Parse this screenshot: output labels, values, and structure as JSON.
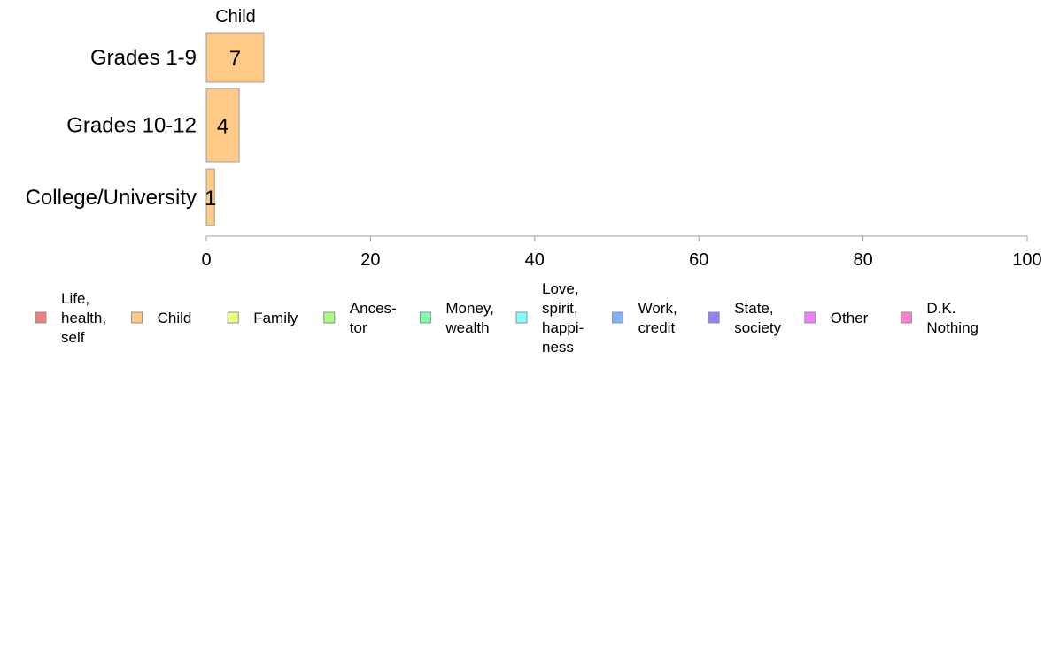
{
  "chart_data": {
    "type": "bar",
    "orientation": "horizontal",
    "categories": [
      "Grades 1-9",
      "Grades 10-12",
      "College/University"
    ],
    "series": [
      {
        "name": "Child",
        "values": [
          7,
          4,
          1
        ],
        "color": "#ffc987"
      }
    ],
    "data_labels": [
      "7",
      "4",
      "1"
    ],
    "column_header": "Child",
    "xlim": [
      0,
      100
    ],
    "xticks": [
      0,
      20,
      40,
      60,
      80,
      100
    ],
    "grid": false,
    "legend_position": "bottom",
    "legend": [
      {
        "label": "Life, health, self",
        "lines": [
          "Life,",
          "health,",
          "self"
        ],
        "color": "#f08080"
      },
      {
        "label": "Child",
        "lines": [
          "Child"
        ],
        "color": "#ffc987"
      },
      {
        "label": "Family",
        "lines": [
          "Family"
        ],
        "color": "#eeff80"
      },
      {
        "label": "Ancestor",
        "lines": [
          "Ances-",
          "tor"
        ],
        "color": "#a6ff80"
      },
      {
        "label": "Money, wealth",
        "lines": [
          "Money,",
          "wealth"
        ],
        "color": "#80ffb3"
      },
      {
        "label": "Love, spirit, happiness",
        "lines": [
          "Love,",
          "spirit,",
          "happi-",
          "ness"
        ],
        "color": "#80ffff"
      },
      {
        "label": "Work, credit",
        "lines": [
          "Work,",
          "credit"
        ],
        "color": "#80b3ff"
      },
      {
        "label": "State, society",
        "lines": [
          "State,",
          "society"
        ],
        "color": "#9980ff"
      },
      {
        "label": "Other",
        "lines": [
          "Other"
        ],
        "color": "#ee80ff"
      },
      {
        "label": "D.K. Nothing",
        "lines": [
          "D.K.",
          "Nothing"
        ],
        "color": "#ff80cc"
      }
    ]
  }
}
